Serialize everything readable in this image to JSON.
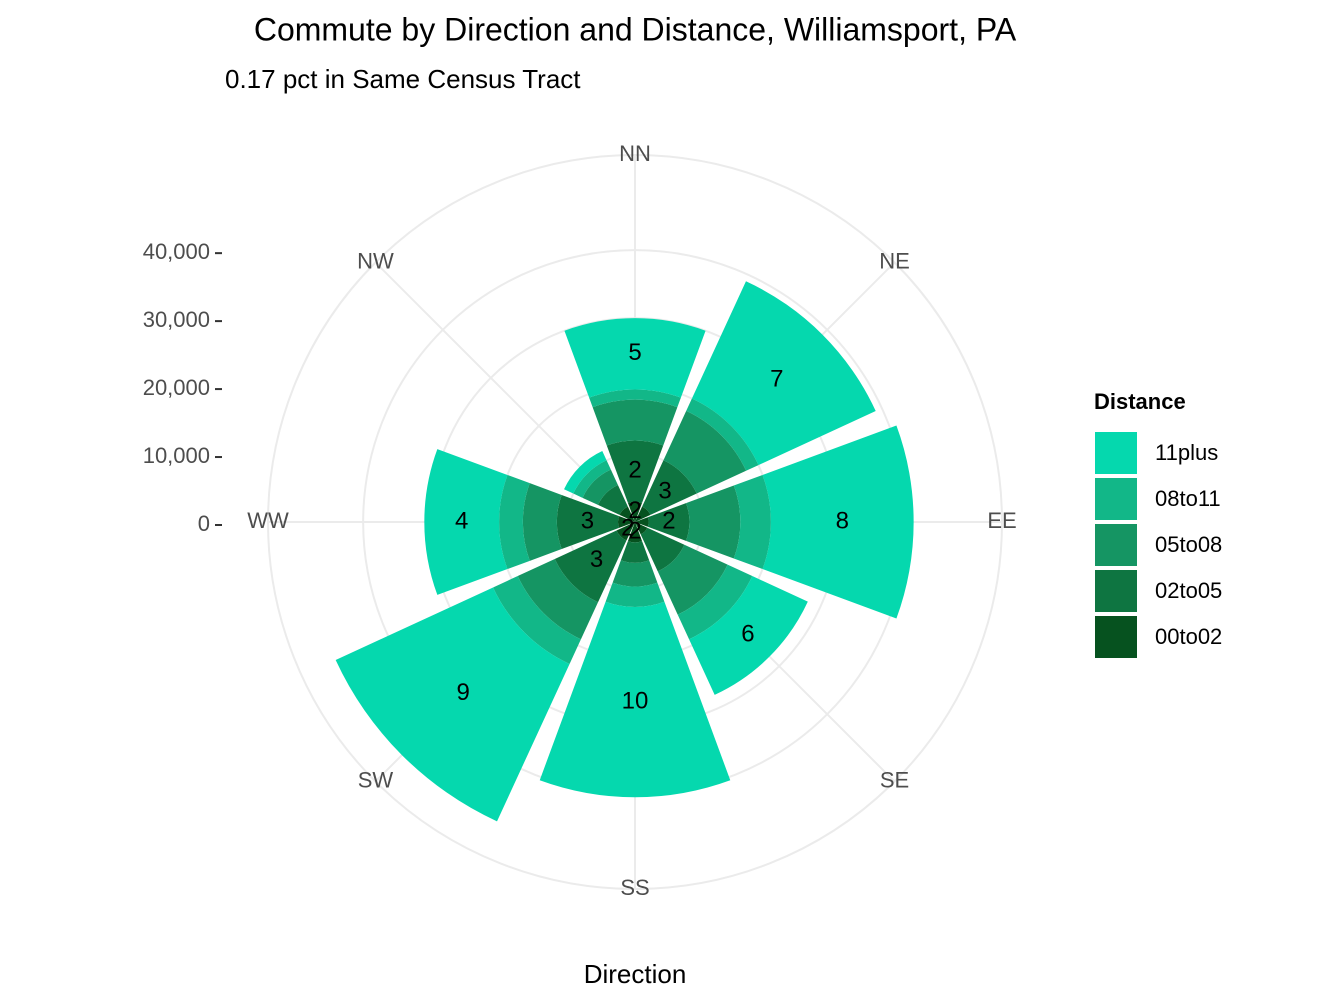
{
  "chart_data": {
    "type": "polar_stacked_bar",
    "title": "Commute by Direction and Distance, Williamsport, PA",
    "subtitle": "0.17 pct in Same Census Tract",
    "x_label": "Direction",
    "legend_title": "Distance",
    "categories": [
      "NN",
      "NE",
      "EE",
      "SE",
      "SS",
      "SW",
      "WW",
      "NW"
    ],
    "ylim": [
      0,
      54000
    ],
    "yticks": [
      0,
      {
        "value": 10000,
        "label": "10,000"
      },
      {
        "value": 20000,
        "label": "20,000"
      },
      {
        "value": 30000,
        "label": "30,000"
      },
      {
        "value": 40000,
        "label": "40,000"
      }
    ],
    "grid": true,
    "legend_position": "right",
    "series": [
      {
        "name": "00to02",
        "color": "#06521f",
        "values": [
          3000,
          2500,
          2000,
          2000,
          3000,
          3000,
          2500,
          2500
        ],
        "value_labels": [
          "2",
          null,
          null,
          null,
          "2",
          "2",
          null,
          null
        ]
      },
      {
        "name": "02to05",
        "color": "#0e7541",
        "values": [
          9000,
          7500,
          6000,
          6000,
          3000,
          10000,
          9000,
          3500
        ],
        "value_labels": [
          "2",
          "3",
          "2",
          null,
          null,
          "3",
          "3",
          null
        ]
      },
      {
        "name": "05to08",
        "color": "#159563",
        "values": [
          6000,
          8000,
          7500,
          7000,
          3500,
          6000,
          5000,
          2500
        ]
      },
      {
        "name": "08to11",
        "color": "#12b788",
        "values": [
          1500,
          2000,
          4500,
          4000,
          3000,
          4000,
          3500,
          1500
        ]
      },
      {
        "name": "11plus",
        "color": "#05d8ae",
        "values": [
          10500,
          19000,
          21000,
          9000,
          28000,
          25500,
          11000,
          1500
        ],
        "value_labels": [
          "5",
          "7",
          "8",
          "6",
          "10",
          "9",
          "4",
          null
        ]
      }
    ]
  }
}
